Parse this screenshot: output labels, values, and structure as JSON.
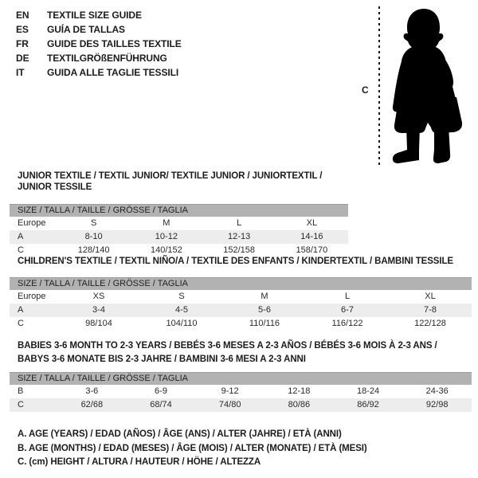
{
  "colors": {
    "background": "#ffffff",
    "header_bar": "#b2b2b2",
    "shaded_row": "#ededed",
    "text": "#1c1c1c",
    "silhouette": "#000000"
  },
  "header": {
    "languages": [
      {
        "code": "EN",
        "label": "TEXTILE SIZE GUIDE"
      },
      {
        "code": "ES",
        "label": "GUÍA DE TALLAS"
      },
      {
        "code": "FR",
        "label": "GUIDE DES TAILLES TEXTILE"
      },
      {
        "code": "DE",
        "label": "TEXTILGRÖßENFÜHRUNG"
      },
      {
        "code": "IT",
        "label": "GUIDA ALLE TAGLIE TESSILI"
      }
    ]
  },
  "figure": {
    "height_marker": "C"
  },
  "tables": [
    {
      "title_lines": [
        "JUNIOR TEXTILE / TEXTIL JUNIOR/ TEXTILE JUNIOR / JUNIORTEXTIL / JUNIOR TESSILE"
      ],
      "size_header": "SIZE / TALLA / TAILLE / GRÖSSE / TAGLIA",
      "rows": [
        {
          "label": "Europe",
          "values": [
            "S",
            "M",
            "L",
            "XL"
          ],
          "shaded": false
        },
        {
          "label": "A",
          "values": [
            "8-10",
            "10-12",
            "12-13",
            "14-16"
          ],
          "shaded": true
        },
        {
          "label": "C",
          "values": [
            "128/140",
            "140/152",
            "152/158",
            "158/170"
          ],
          "shaded": false
        }
      ]
    },
    {
      "title_lines": [
        "CHILDREN'S TEXTILE / TEXTIL NIÑO/A / TEXTILE DES ENFANTS / KINDERTEXTIL / BAMBINI TESSILE"
      ],
      "size_header": "SIZE / TALLA / TAILLE / GRÖSSE / TAGLIA",
      "rows": [
        {
          "label": "Europe",
          "values": [
            "XS",
            "S",
            "M",
            "L",
            "XL"
          ],
          "shaded": false
        },
        {
          "label": "A",
          "values": [
            "3-4",
            "4-5",
            "5-6",
            "6-7",
            "7-8"
          ],
          "shaded": true
        },
        {
          "label": "C",
          "values": [
            "98/104",
            "104/110",
            "110/116",
            "116/122",
            "122/128"
          ],
          "shaded": false
        }
      ]
    },
    {
      "title_lines": [
        "BABIES 3-6 MONTH TO 2-3 YEARS / BEBÉS 3-6 MESES A 2-3 AÑOS / BÉBÉS 3-6 MOIS À 2-3 ANS /",
        "BABYS 3-6 MONATE BIS 2-3 JAHRE / BAMBINI 3-6 MESI A 2-3 ANNI"
      ],
      "size_header": "SIZE / TALLA / TAILLE / GRÖSSE / TAGLIA",
      "rows": [
        {
          "label": "B",
          "values": [
            "3-6",
            "6-9",
            "9-12",
            "12-18",
            "18-24",
            "24-36"
          ],
          "shaded": false
        },
        {
          "label": "C",
          "values": [
            "62/68",
            "68/74",
            "74/80",
            "80/86",
            "86/92",
            "92/98"
          ],
          "shaded": true
        }
      ]
    }
  ],
  "notes": [
    "A. AGE (YEARS) / EDAD (AÑOS) / ÂGE (ANS) / ALTER (JAHRE) / ETÀ (ANNI)",
    "B. AGE (MONTHS) / EDAD (MESES) / ÂGE (MOIS) / ALTER (MONATE) / ETÀ (MESI)",
    "C. (cm) HEIGHT / ALTURA / HAUTEUR / HÖHE / ALTEZZA"
  ]
}
